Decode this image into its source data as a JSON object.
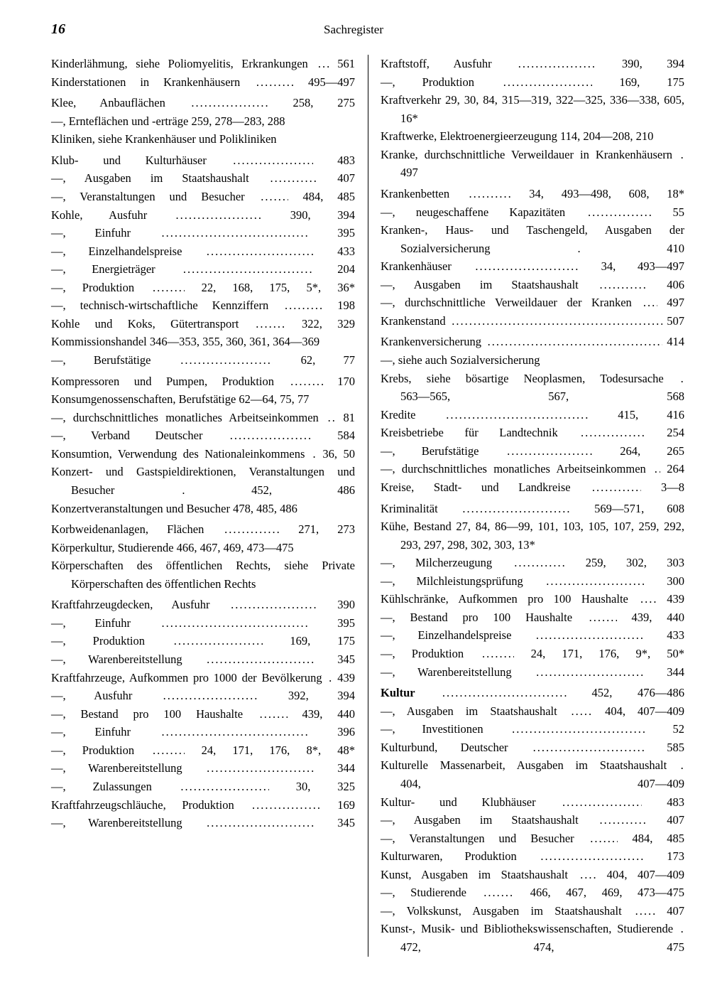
{
  "page_number": "16",
  "running_head": "Sachregister",
  "dot_char": ".",
  "left": [
    {
      "text": "Kinderlähmung, siehe Poliomyelitis, Erkrankungen",
      "pages": "561",
      "leader": true
    },
    {
      "text": "Kinderstationen in Krankenhäusern",
      "pages": "495—497",
      "leader": true
    },
    {
      "gap": 4
    },
    {
      "text": "Klee, Anbauflächen",
      "pages": "258, 275",
      "leader": true
    },
    {
      "text": "—, Ernteflächen und -erträge 259, 278—283, 288",
      "leader": false
    },
    {
      "text": "Kliniken, siehe Krankenhäuser und Polikliniken",
      "leader": false
    },
    {
      "gap": 4
    },
    {
      "text": "Klub- und Kulturhäuser",
      "pages": "483",
      "leader": true
    },
    {
      "text": "—, Ausgaben im Staatshaushalt",
      "pages": "407",
      "leader": true
    },
    {
      "text": "—, Veranstaltungen und Besucher",
      "pages": "484, 485",
      "leader": true
    },
    {
      "text": "Kohle, Ausfuhr",
      "pages": "390, 394",
      "leader": true
    },
    {
      "text": "—, Einfuhr",
      "pages": "395",
      "leader": true
    },
    {
      "text": "—, Einzelhandelspreise",
      "pages": "433",
      "leader": true
    },
    {
      "text": "—, Energieträger",
      "pages": "204",
      "leader": true
    },
    {
      "text": "—, Produktion",
      "pages": "22, 168, 175, 5*, 36*",
      "leader": true
    },
    {
      "text": "—, technisch-wirtschaftliche Kennziffern",
      "pages": "198",
      "leader": true
    },
    {
      "text": "Kohle und Koks, Gütertransport",
      "pages": "322, 329",
      "leader": true
    },
    {
      "text": "Kommissionshandel 346—353, 355, 360, 361, 364—369",
      "leader": false
    },
    {
      "text": "—, Berufstätige",
      "pages": "62, 77",
      "leader": true
    },
    {
      "gap": 4
    },
    {
      "text": "Kompressoren und Pumpen, Produktion",
      "pages": "170",
      "leader": true
    },
    {
      "text": "Konsumgenossenschaften, Berufstätige 62—64, 75, 77",
      "leader": false
    },
    {
      "text": "—, durchschnittliches monatliches Arbeitseinkommen",
      "pages": "81",
      "leader": true
    },
    {
      "text": "—, Verband Deutscher",
      "pages": "584",
      "leader": true
    },
    {
      "text": "Konsumtion, Verwendung des Nationaleinkommens",
      "pages": "36, 50",
      "leader": true
    },
    {
      "text": "Konzert- und Gastspieldirektionen, Veranstaltungen und Besucher",
      "pages": "452, 486",
      "leader": true
    },
    {
      "text": "Konzertveranstaltungen und Besucher 478, 485, 486",
      "leader": false
    },
    {
      "gap": 4
    },
    {
      "text": "Korbweidenanlagen, Flächen",
      "pages": "271, 273",
      "leader": true
    },
    {
      "text": "Körperkultur, Studierende 466, 467, 469, 473—475",
      "leader": false
    },
    {
      "text": "Körperschaften des öffentlichen Rechts, siehe Private Körperschaften des öffentlichen Rechts",
      "leader": false
    },
    {
      "gap": 4
    },
    {
      "text": "Kraftfahrzeugdecken, Ausfuhr",
      "pages": "390",
      "leader": true
    },
    {
      "text": "—, Einfuhr",
      "pages": "395",
      "leader": true
    },
    {
      "text": "—, Produktion",
      "pages": "169, 175",
      "leader": true
    },
    {
      "text": "—, Warenbereitstellung",
      "pages": "345",
      "leader": true
    },
    {
      "text": "Kraftfahrzeuge, Aufkommen pro 1000 der Bevölkerung",
      "pages": "439",
      "leader": true
    },
    {
      "text": "—, Ausfuhr",
      "pages": "392, 394",
      "leader": true
    },
    {
      "text": "—, Bestand pro 100 Haushalte",
      "pages": "439, 440",
      "leader": true
    },
    {
      "text": "—, Einfuhr",
      "pages": "396",
      "leader": true
    },
    {
      "text": "—, Produktion",
      "pages": "24, 171, 176, 8*, 48*",
      "leader": true
    },
    {
      "text": "—, Warenbereitstellung",
      "pages": "344",
      "leader": true
    },
    {
      "text": "—, Zulassungen",
      "pages": "30, 325",
      "leader": true
    },
    {
      "text": "Kraftfahrzeugschläuche, Produktion",
      "pages": "169",
      "leader": true
    },
    {
      "text": "—, Warenbereitstellung",
      "pages": "345",
      "leader": true
    }
  ],
  "right": [
    {
      "text": "Kraftstoff, Ausfuhr",
      "pages": "390, 394",
      "leader": true
    },
    {
      "text": "—, Produktion",
      "pages": "169, 175",
      "leader": true
    },
    {
      "text": "Kraftverkehr 29, 30, 84, 315—319, 322—325, 336—338, 605, 16*",
      "leader": false
    },
    {
      "text": "Kraftwerke, Elektroenergieerzeugung 114, 204—208, 210",
      "leader": false
    },
    {
      "text": "Kranke, durchschnittliche Verweildauer in Krankenhäusern",
      "pages": "497",
      "leader": true
    },
    {
      "gap": 4
    },
    {
      "text": "Krankenbetten",
      "pages": "34, 493—498, 608, 18*",
      "leader": true
    },
    {
      "text": "—, neugeschaffene Kapazitäten",
      "pages": "55",
      "leader": true
    },
    {
      "text": "Kranken-, Haus- und Taschengeld, Ausgaben der Sozialversicherung",
      "pages": "410",
      "leader": true
    },
    {
      "text": "Krankenhäuser",
      "pages": "34, 493—497",
      "leader": true
    },
    {
      "text": "—, Ausgaben im Staatshaushalt",
      "pages": "406",
      "leader": true
    },
    {
      "text": "—, durchschnittliche Verweildauer der Kranken",
      "pages": "497",
      "leader": true
    },
    {
      "text": "Krankenstand",
      "pages": "507",
      "leader": true
    },
    {
      "gap": 4
    },
    {
      "text": "Krankenversicherung",
      "pages": "414",
      "leader": true
    },
    {
      "text": "—, siehe auch Sozialversicherung",
      "leader": false
    },
    {
      "text": "Krebs, siehe bösartige Neoplasmen, Todesursache",
      "pages": "563—565, 567, 568",
      "leader": true
    },
    {
      "text": "Kredite",
      "pages": "415, 416",
      "leader": true
    },
    {
      "text": "Kreisbetriebe für Landtechnik",
      "pages": "254",
      "leader": true
    },
    {
      "text": "—, Berufstätige",
      "pages": "264, 265",
      "leader": true
    },
    {
      "text": "—, durchschnittliches monatliches Arbeitseinkommen",
      "pages": "264",
      "leader": true
    },
    {
      "text": "Kreise, Stadt- und Landkreise",
      "pages": "3—8",
      "leader": true
    },
    {
      "gap": 4
    },
    {
      "text": "Kriminalität",
      "pages": "569—571, 608",
      "leader": true
    },
    {
      "text": "Kühe, Bestand 27, 84, 86—99, 101, 103, 105, 107, 259, 292, 293, 297, 298, 302, 303, 13*",
      "leader": false
    },
    {
      "text": "—, Milcherzeugung",
      "pages": "259, 302, 303",
      "leader": true
    },
    {
      "text": "—, Milchleistungsprüfung",
      "pages": "300",
      "leader": true
    },
    {
      "text": "Kühlschränke, Aufkommen pro 100 Haushalte",
      "pages": "439",
      "leader": true
    },
    {
      "text": "—, Bestand pro 100 Haushalte",
      "pages": "439, 440",
      "leader": true
    },
    {
      "text": "—, Einzelhandelspreise",
      "pages": "433",
      "leader": true
    },
    {
      "text": "—, Produktion",
      "pages": "24, 171, 176, 9*, 50*",
      "leader": true
    },
    {
      "text": "—, Warenbereitstellung",
      "pages": "344",
      "leader": true
    },
    {
      "gap": 4
    },
    {
      "text": "Kultur",
      "bold": true,
      "pages": "452, 476—486",
      "leader": true
    },
    {
      "text": "—, Ausgaben im Staatshaushalt",
      "pages": "404, 407—409",
      "leader": true
    },
    {
      "text": "—, Investitionen",
      "pages": "52",
      "leader": true
    },
    {
      "text": "Kulturbund, Deutscher",
      "pages": "585",
      "leader": true
    },
    {
      "text": "Kulturelle Massenarbeit, Ausgaben im Staatshaushalt",
      "pages": "404, 407—409",
      "leader": true
    },
    {
      "text": "Kultur- und Klubhäuser",
      "pages": "483",
      "leader": true
    },
    {
      "text": "—, Ausgaben im Staatshaushalt",
      "pages": "407",
      "leader": true
    },
    {
      "text": "—, Veranstaltungen und Besucher",
      "pages": "484, 485",
      "leader": true
    },
    {
      "text": "Kulturwaren, Produktion",
      "pages": "173",
      "leader": true
    },
    {
      "text": "Kunst, Ausgaben im Staatshaushalt",
      "pages": "404, 407—409",
      "leader": true
    },
    {
      "text": "—, Studierende",
      "pages": "466, 467, 469, 473—475",
      "leader": true
    },
    {
      "text": "—, Volkskunst, Ausgaben im Staatshaushalt",
      "pages": "407",
      "leader": true
    },
    {
      "text": "Kunst-, Musik- und Bibliothekswissenschaften, Studierende",
      "pages": "472, 474, 475",
      "leader": true
    }
  ]
}
